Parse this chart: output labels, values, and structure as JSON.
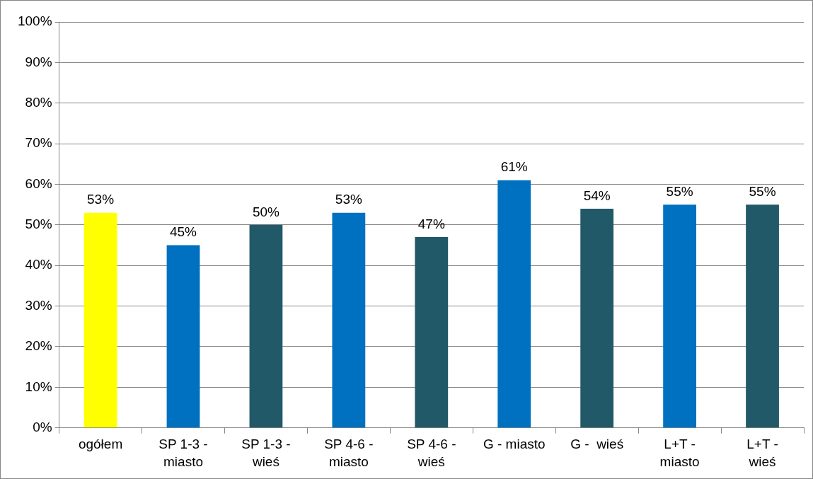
{
  "chart_data": {
    "type": "bar",
    "categories": [
      "ogółem",
      "SP 1-3 -\nmiasto",
      "SP 1-3 -\nwieś",
      "SP 4-6 -\nmiasto",
      "SP 4-6 -\nwieś",
      "G - miasto",
      "G -  wieś",
      "L+T -\nmiasto",
      "L+T -\nwieś"
    ],
    "values": [
      53,
      45,
      50,
      53,
      47,
      61,
      54,
      55,
      55
    ],
    "colors": [
      "#ffff00",
      "#0070c0",
      "#215968",
      "#0070c0",
      "#215968",
      "#0070c0",
      "#215968",
      "#0070c0",
      "#215968"
    ],
    "value_labels": [
      "53%",
      "45%",
      "50%",
      "53%",
      "47%",
      "61%",
      "54%",
      "55%",
      "55%"
    ],
    "ylim": [
      0,
      100
    ],
    "yticks": [
      {
        "value": 0,
        "label": "0%"
      },
      {
        "value": 10,
        "label": "10%"
      },
      {
        "value": 20,
        "label": "20%"
      },
      {
        "value": 30,
        "label": "30%"
      },
      {
        "value": 40,
        "label": "40%"
      },
      {
        "value": 50,
        "label": "50%"
      },
      {
        "value": 60,
        "label": "60%"
      },
      {
        "value": 70,
        "label": "70%"
      },
      {
        "value": 80,
        "label": "80%"
      },
      {
        "value": 90,
        "label": "90%"
      },
      {
        "value": 100,
        "label": "100%"
      }
    ],
    "grid": "y",
    "legend": false
  }
}
